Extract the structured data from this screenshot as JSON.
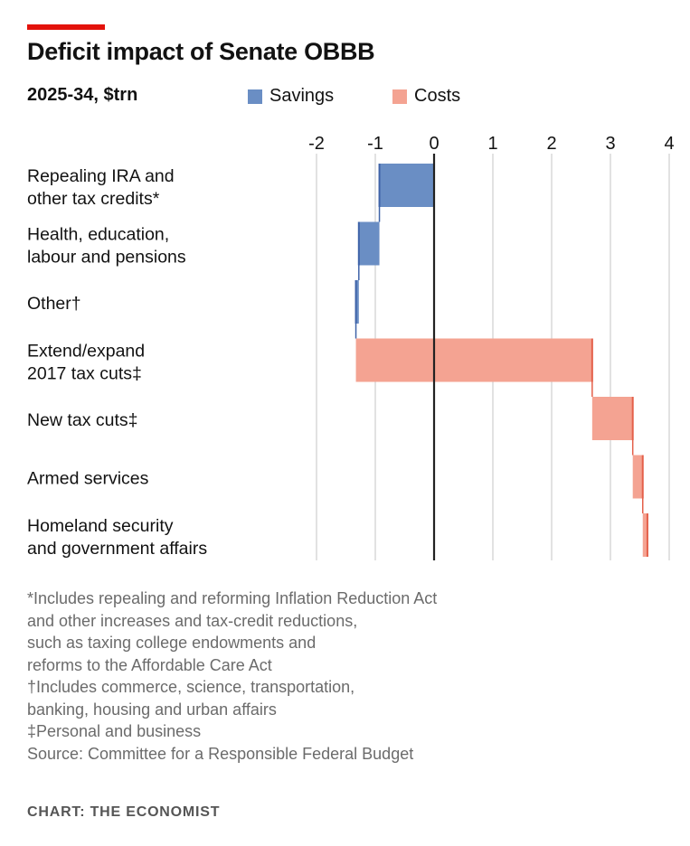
{
  "chart_data": {
    "type": "waterfall-bar",
    "title": "Deficit impact of Senate OBBB",
    "subtitle": "2025-34, $trn",
    "legend": [
      {
        "label": "Savings",
        "color": "#6a8ec4"
      },
      {
        "label": "Costs",
        "color": "#f4a392"
      }
    ],
    "legend_placement": "top",
    "xlim": [
      -2,
      4
    ],
    "xticks": [
      "-2",
      "-1",
      "0",
      "1",
      "2",
      "3",
      "4"
    ],
    "xtick_values": [
      -2,
      -1,
      0,
      1,
      2,
      3,
      4
    ],
    "grid": true,
    "categories": [
      [
        "Repealing IRA and",
        "other tax credits*"
      ],
      [
        "Health, education,",
        "labour and pensions"
      ],
      [
        "Other†"
      ],
      [
        "Extend/expand",
        "2017 tax cuts‡"
      ],
      [
        "New tax cuts‡"
      ],
      [
        "Armed services"
      ],
      [
        "Homeland security",
        "and government affairs"
      ]
    ],
    "values": [
      -0.93,
      -0.35,
      -0.05,
      4.02,
      0.69,
      0.17,
      0.08
    ],
    "cumulative_end": [
      -0.93,
      -1.28,
      -1.33,
      2.69,
      3.38,
      3.55,
      3.63
    ]
  },
  "colors": {
    "accent": "#e3120b",
    "savings_edge": "#3f63a8",
    "costs_edge": "#e4604a"
  },
  "footnotes": [
    "*Includes repealing and reforming Inflation Reduction Act",
    "and other increases and tax-credit reductions,",
    "such as taxing college endowments and",
    "reforms to the Affordable Care Act",
    "†Includes commerce, science, transportation,",
    "banking, housing and urban affairs",
    "‡Personal and business",
    "Source: Committee for a Responsible Federal Budget"
  ],
  "credit": "CHART: THE ECONOMIST"
}
